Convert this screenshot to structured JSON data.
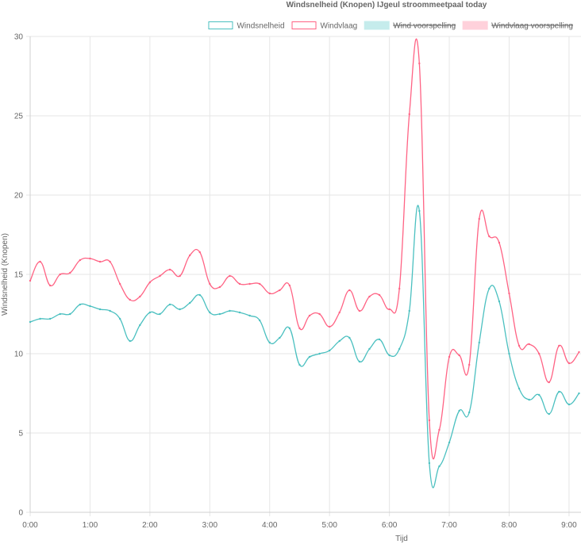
{
  "chart_data": {
    "type": "line",
    "title": "Windsnelheid (Knopen) IJgeul stroommeetpaal today",
    "xlabel": "Tijd",
    "ylabel": "Windsnelheid (Knopen)",
    "xlim": [
      0,
      552
    ],
    "ylim": [
      0,
      30
    ],
    "yticks": [
      0,
      5,
      10,
      15,
      20,
      25,
      30
    ],
    "xticks": [
      {
        "value": 0,
        "label": "0:00"
      },
      {
        "value": 60,
        "label": "1:00"
      },
      {
        "value": 120,
        "label": "2:00"
      },
      {
        "value": 180,
        "label": "3:00"
      },
      {
        "value": 240,
        "label": "4:00"
      },
      {
        "value": 300,
        "label": "5:00"
      },
      {
        "value": 360,
        "label": "6:00"
      },
      {
        "value": 420,
        "label": "7:00"
      },
      {
        "value": 480,
        "label": "8:00"
      },
      {
        "value": 540,
        "label": "9:00"
      }
    ],
    "grid": true,
    "legend_position": "top-right",
    "legend": [
      {
        "label": "Windsnelheid",
        "color": "#4bc0c0",
        "style": "outline",
        "hidden": false
      },
      {
        "label": "Windvlaag",
        "color": "#ff6384",
        "style": "outline",
        "hidden": false
      },
      {
        "label": "Wind voorspelling",
        "color": "#c5ecec",
        "style": "filled",
        "hidden": true
      },
      {
        "label": "Windvlaag voorspelling",
        "color": "#ffd1db",
        "style": "filled",
        "hidden": true
      }
    ],
    "x": [
      0,
      10,
      20,
      30,
      40,
      50,
      60,
      70,
      80,
      90,
      100,
      110,
      120,
      130,
      140,
      150,
      160,
      170,
      180,
      190,
      200,
      210,
      220,
      230,
      240,
      250,
      260,
      270,
      280,
      290,
      300,
      310,
      320,
      330,
      340,
      350,
      360,
      370,
      380,
      390,
      400,
      410,
      420,
      430,
      440,
      450,
      460,
      470,
      480,
      490,
      500,
      510,
      520,
      530,
      540,
      550
    ],
    "series": [
      {
        "name": "Windsnelheid",
        "color": "#4bc0c0",
        "values": [
          12.0,
          12.2,
          12.2,
          12.5,
          12.5,
          13.1,
          13.0,
          12.8,
          12.7,
          12.2,
          10.8,
          11.8,
          12.6,
          12.5,
          13.1,
          12.8,
          13.2,
          13.7,
          12.6,
          12.5,
          12.7,
          12.6,
          12.4,
          12.1,
          10.7,
          11.0,
          11.6,
          9.3,
          9.8,
          10.0,
          10.2,
          10.8,
          11.0,
          9.5,
          10.3,
          10.9,
          9.9,
          10.3,
          12.7,
          19.0,
          3.1,
          2.9,
          4.4,
          6.4,
          6.3,
          10.7,
          14.1,
          13.3,
          10.0,
          7.8,
          7.1,
          7.4,
          6.2,
          7.6,
          6.8,
          7.5
        ]
      },
      {
        "name": "Windvlaag",
        "color": "#ff6384",
        "values": [
          14.6,
          15.8,
          14.3,
          15.0,
          15.1,
          15.9,
          16.0,
          15.8,
          15.8,
          14.4,
          13.4,
          13.6,
          14.5,
          14.9,
          15.3,
          14.9,
          16.2,
          16.4,
          14.4,
          14.2,
          14.9,
          14.4,
          14.4,
          14.4,
          13.8,
          14.0,
          14.3,
          11.6,
          12.4,
          12.5,
          11.7,
          12.6,
          14.0,
          12.7,
          13.6,
          13.7,
          12.8,
          14.1,
          25.1,
          28.3,
          5.8,
          5.2,
          9.8,
          9.9,
          9.3,
          18.5,
          17.4,
          17.0,
          13.8,
          10.5,
          10.6,
          10.0,
          8.2,
          10.5,
          9.4,
          10.1
        ]
      }
    ]
  }
}
